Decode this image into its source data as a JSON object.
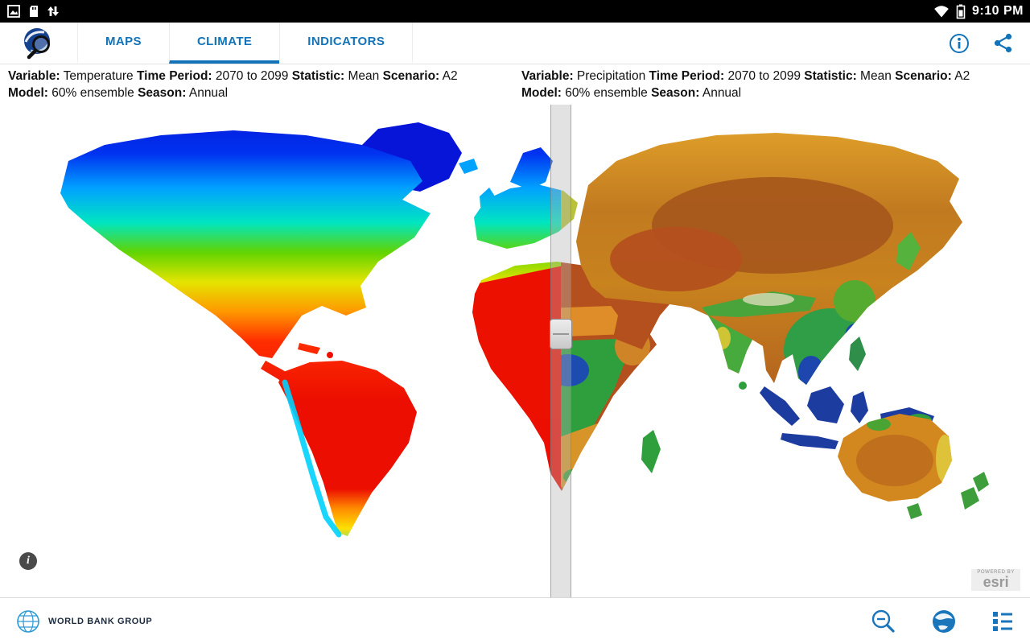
{
  "status_bar": {
    "time": "9:10 PM",
    "icons_left": [
      "screenshot-icon",
      "sd-card-icon",
      "sync-arrows-icon"
    ],
    "icons_right": [
      "wifi-icon",
      "battery-icon"
    ]
  },
  "toolbar": {
    "logo": "climate-portal-logo",
    "tabs": [
      {
        "label": "MAPS",
        "active": false
      },
      {
        "label": "CLIMATE",
        "active": true
      },
      {
        "label": "INDICATORS",
        "active": false
      }
    ],
    "actions": [
      {
        "name": "info"
      },
      {
        "name": "share"
      }
    ]
  },
  "panels": {
    "left": {
      "pairs": [
        {
          "label": "Variable:",
          "value": "Temperature"
        },
        {
          "label": "Time Period:",
          "value": "2070 to 2099"
        },
        {
          "label": "Statistic:",
          "value": "Mean"
        },
        {
          "label": "Scenario:",
          "value": "A2"
        },
        {
          "label": "Model:",
          "value": "60% ensemble"
        },
        {
          "label": "Season:",
          "value": "Annual"
        }
      ]
    },
    "right": {
      "pairs": [
        {
          "label": "Variable:",
          "value": "Precipitation"
        },
        {
          "label": "Time Period:",
          "value": "2070 to 2099"
        },
        {
          "label": "Statistic:",
          "value": "Mean"
        },
        {
          "label": "Scenario:",
          "value": "A2"
        },
        {
          "label": "Model:",
          "value": "60% ensemble"
        },
        {
          "label": "Season:",
          "value": "Annual"
        }
      ]
    }
  },
  "map": {
    "left_layer": "Temperature",
    "right_layer": "Precipitation",
    "info_label": "i",
    "attribution": {
      "powered_by": "POWERED BY",
      "brand": "esri"
    }
  },
  "footer": {
    "brand": "WORLD BANK GROUP"
  },
  "colors": {
    "accent_blue": "#1273b8",
    "footer_icon_blue": "#1a75bb",
    "status_bar_bg": "#000000",
    "divider_gray": "#b2b2b2",
    "temperature_palette": [
      "#0712d6",
      "#00a2ff",
      "#00e6c0",
      "#62d400",
      "#e4e400",
      "#ff9800",
      "#ec0e00"
    ],
    "precipitation_palette": [
      "#b4501e",
      "#d89a28",
      "#e4c83c",
      "#2f9e3c",
      "#1d3ca0"
    ]
  }
}
